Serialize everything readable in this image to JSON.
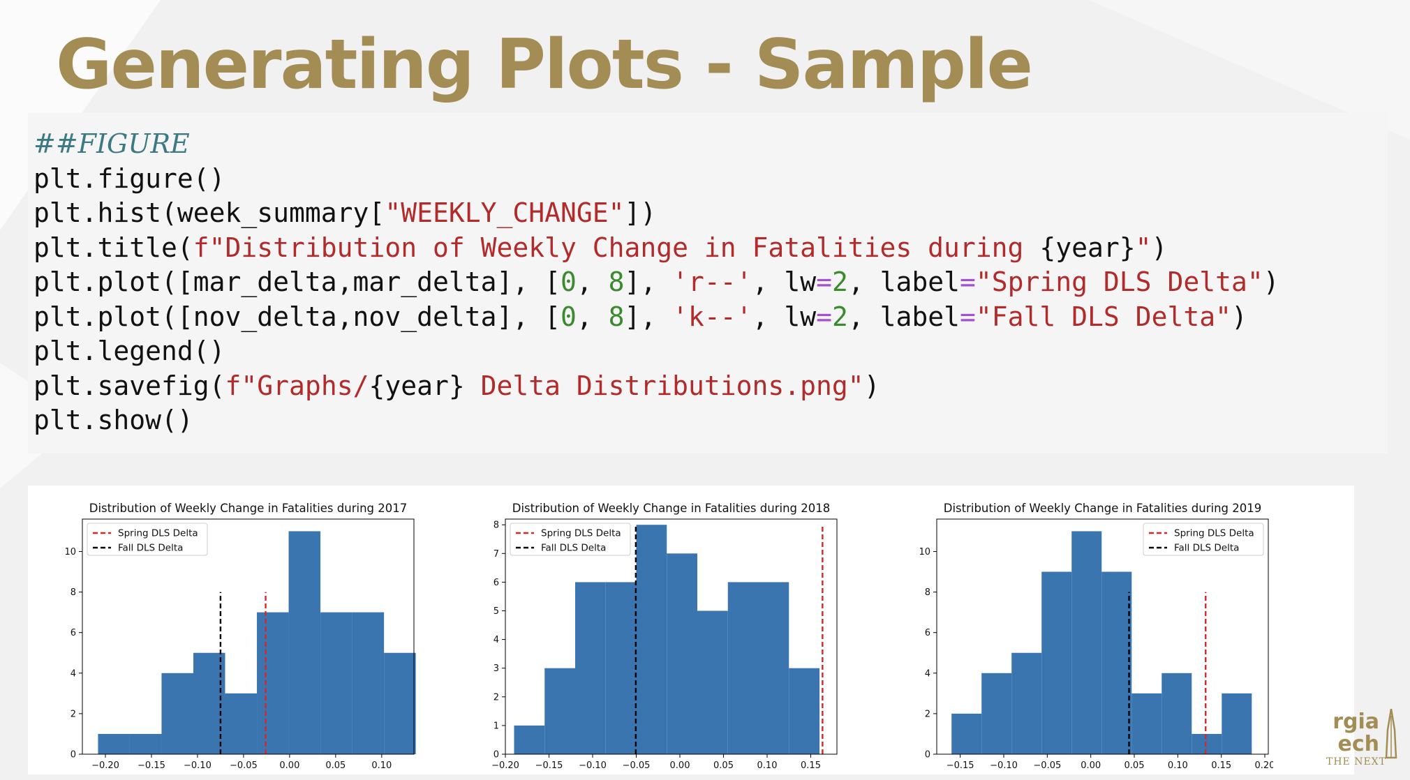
{
  "slide": {
    "title": "Generating Plots - Sample",
    "colors": {
      "title": "#a38d55",
      "code_bg": "#f5f5f5",
      "bar": "#3a75b0"
    }
  },
  "code": [
    [
      {
        "t": "##FIGURE",
        "c": "comment"
      }
    ],
    [
      {
        "t": "plt.figure()",
        "c": "plain"
      }
    ],
    [
      {
        "t": "plt.hist(week_summary[",
        "c": "plain"
      },
      {
        "t": "\"WEEKLY_CHANGE\"",
        "c": "str"
      },
      {
        "t": "])",
        "c": "plain"
      }
    ],
    [
      {
        "t": "plt.title(",
        "c": "plain"
      },
      {
        "t": "f\"Distribution of Weekly Change in Fatalities during ",
        "c": "str"
      },
      {
        "t": "{year}",
        "c": "plain"
      },
      {
        "t": "\"",
        "c": "str"
      },
      {
        "t": ")",
        "c": "plain"
      }
    ],
    [
      {
        "t": "plt.plot([mar_delta,mar_delta], [",
        "c": "plain"
      },
      {
        "t": "0",
        "c": "num"
      },
      {
        "t": ", ",
        "c": "plain"
      },
      {
        "t": "8",
        "c": "num"
      },
      {
        "t": "], ",
        "c": "plain"
      },
      {
        "t": "'r--'",
        "c": "str"
      },
      {
        "t": ", lw",
        "c": "plain"
      },
      {
        "t": "=",
        "c": "op"
      },
      {
        "t": "2",
        "c": "num"
      },
      {
        "t": ", label",
        "c": "plain"
      },
      {
        "t": "=",
        "c": "op"
      },
      {
        "t": "\"Spring DLS Delta\"",
        "c": "str"
      },
      {
        "t": ")",
        "c": "plain"
      }
    ],
    [
      {
        "t": "plt.plot([nov_delta,nov_delta], [",
        "c": "plain"
      },
      {
        "t": "0",
        "c": "num"
      },
      {
        "t": ", ",
        "c": "plain"
      },
      {
        "t": "8",
        "c": "num"
      },
      {
        "t": "], ",
        "c": "plain"
      },
      {
        "t": "'k--'",
        "c": "str"
      },
      {
        "t": ", lw",
        "c": "plain"
      },
      {
        "t": "=",
        "c": "op"
      },
      {
        "t": "2",
        "c": "num"
      },
      {
        "t": ", label",
        "c": "plain"
      },
      {
        "t": "=",
        "c": "op"
      },
      {
        "t": "\"Fall DLS Delta\"",
        "c": "str"
      },
      {
        "t": ")",
        "c": "plain"
      }
    ],
    [
      {
        "t": "plt.legend()",
        "c": "plain"
      }
    ],
    [
      {
        "t": "plt.savefig(",
        "c": "plain"
      },
      {
        "t": "f\"Graphs/",
        "c": "str"
      },
      {
        "t": "{year}",
        "c": "plain"
      },
      {
        "t": " Delta Distributions.png\"",
        "c": "str"
      },
      {
        "t": ")",
        "c": "plain"
      }
    ],
    [
      {
        "t": "plt.show()",
        "c": "plain"
      }
    ]
  ],
  "chart_data": [
    {
      "type": "bar",
      "title": "Distribution of Weekly Change in Fatalities during 2017",
      "xlim": [
        -0.225,
        0.135
      ],
      "ylim": [
        0,
        11.6
      ],
      "xticks": [
        -0.2,
        -0.15,
        -0.1,
        -0.05,
        0.0,
        0.05,
        0.1
      ],
      "xtick_labels": [
        "−0.20",
        "−0.15",
        "−0.10",
        "−0.05",
        "0.00",
        "0.05",
        "0.10"
      ],
      "yticks": [
        0,
        2,
        4,
        6,
        8,
        10
      ],
      "bin_edges": [
        -0.208,
        -0.1735,
        -0.139,
        -0.1045,
        -0.07,
        -0.0355,
        -0.001,
        0.0335,
        0.068,
        0.1025,
        0.137
      ],
      "counts": [
        1,
        1,
        4,
        5,
        3,
        7,
        11,
        7,
        7,
        5
      ],
      "lines": [
        {
          "name": "Spring DLS Delta",
          "x": -0.026,
          "y": [
            0,
            8
          ],
          "color": "#d62728"
        },
        {
          "name": "Fall DLS Delta",
          "x": -0.075,
          "y": [
            0,
            8
          ],
          "color": "#000000"
        }
      ],
      "legend": "upper-left"
    },
    {
      "type": "bar",
      "title": "Distribution of Weekly Change in Fatalities during 2018",
      "xlim": [
        -0.2,
        0.18
      ],
      "ylim": [
        0,
        8.2
      ],
      "xticks": [
        -0.2,
        -0.15,
        -0.1,
        -0.05,
        0.0,
        0.05,
        0.1,
        0.15
      ],
      "xtick_labels": [
        "−0.20",
        "−0.15",
        "−0.10",
        "−0.05",
        "0.00",
        "0.05",
        "0.10",
        "0.15"
      ],
      "yticks": [
        0,
        1,
        2,
        3,
        4,
        5,
        6,
        7,
        8
      ],
      "bin_edges": [
        -0.19,
        -0.155,
        -0.12,
        -0.085,
        -0.05,
        -0.015,
        0.02,
        0.055,
        0.09,
        0.125,
        0.16
      ],
      "counts": [
        1,
        3,
        6,
        6,
        8,
        7,
        5,
        6,
        6,
        3
      ],
      "lines": [
        {
          "name": "Spring DLS Delta",
          "x": 0.1635,
          "y": [
            0,
            8
          ],
          "color": "#d62728"
        },
        {
          "name": "Fall DLS Delta",
          "x": -0.0505,
          "y": [
            0,
            8
          ],
          "color": "#000000"
        }
      ],
      "legend": "upper-left"
    },
    {
      "type": "bar",
      "title": "Distribution of Weekly Change in Fatalities during 2019",
      "xlim": [
        -0.177,
        0.204
      ],
      "ylim": [
        0,
        11.6
      ],
      "xticks": [
        -0.15,
        -0.1,
        -0.05,
        0.0,
        0.05,
        0.1,
        0.15,
        0.2
      ],
      "xtick_labels": [
        "−0.15",
        "−0.10",
        "−0.05",
        "0.00",
        "0.05",
        "0.10",
        "0.15",
        "0.20"
      ],
      "yticks": [
        0,
        2,
        4,
        6,
        8,
        10
      ],
      "bin_edges": [
        -0.16,
        -0.1255,
        -0.091,
        -0.0565,
        -0.022,
        0.0125,
        0.047,
        0.0815,
        0.116,
        0.1505,
        0.185
      ],
      "counts": [
        2,
        4,
        5,
        9,
        11,
        9,
        3,
        4,
        1,
        3
      ],
      "lines": [
        {
          "name": "Spring DLS Delta",
          "x": 0.132,
          "y": [
            0,
            8
          ],
          "color": "#d62728"
        },
        {
          "name": "Fall DLS Delta",
          "x": 0.044,
          "y": [
            0,
            8
          ],
          "color": "#000000"
        }
      ],
      "legend": "upper-right"
    }
  ],
  "logo": {
    "line1": "rgia",
    "line2": "ech",
    "sub": "THE NEXT"
  }
}
